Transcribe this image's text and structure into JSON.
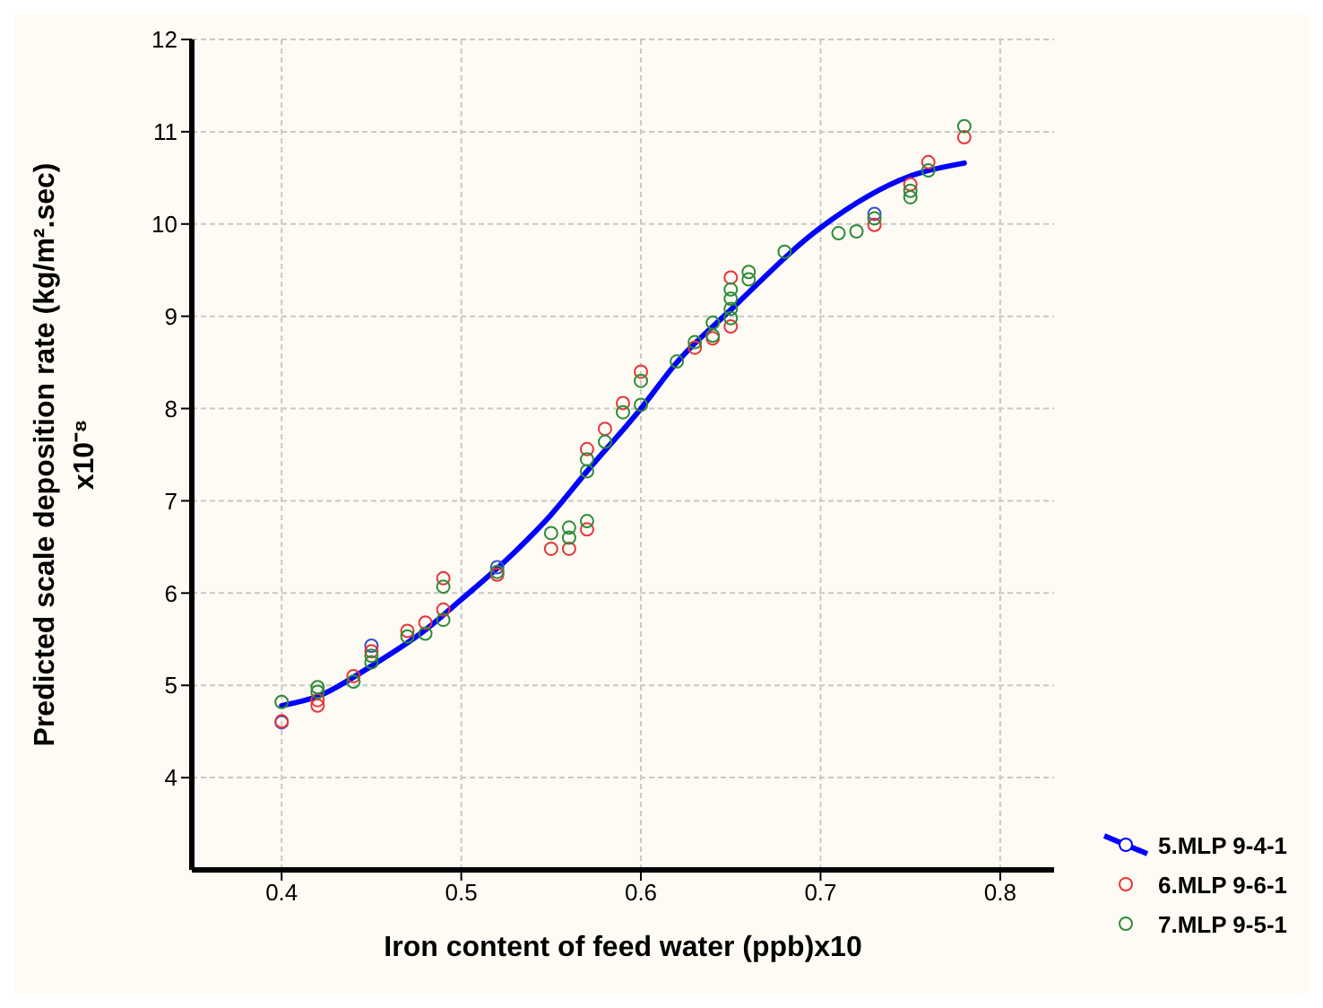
{
  "chart_data": {
    "type": "scatter",
    "xlabel": "Iron content of feed water (ppb)x10",
    "ylabel": "Predicted scale deposition rate (kg/m².sec)\nx10⁻⁸",
    "xlim": [
      0.35,
      0.83
    ],
    "xticks": [
      0.4,
      0.5,
      0.6,
      0.7,
      0.8
    ],
    "ylim": [
      3,
      12
    ],
    "yticks": [
      4,
      5,
      6,
      7,
      8,
      9,
      10,
      11,
      12
    ],
    "grid": true,
    "legend": "bottom right",
    "marker": "circle",
    "series": [
      {
        "name": "5.MLP 9-4-1",
        "type": "line",
        "marker": "none",
        "color": "#0000ff",
        "x": [
          0.4,
          0.42,
          0.45,
          0.48,
          0.5,
          0.53,
          0.55,
          0.57,
          0.6,
          0.62,
          0.65,
          0.7,
          0.75,
          0.78
        ],
        "values": [
          4.78,
          4.88,
          5.21,
          5.6,
          5.93,
          6.45,
          6.85,
          7.32,
          8.0,
          8.5,
          9.07,
          9.96,
          10.52,
          10.66
        ]
      },
      {
        "color": "#3a4fd0",
        "x": [
          0.4,
          0.45,
          0.52,
          0.71,
          0.73
        ],
        "values": [
          4.6,
          5.43,
          6.28,
          null,
          10.11
        ]
      },
      {
        "name": "6.MLP 9-6-1",
        "color": "#e8353a",
        "x": [
          0.4,
          0.42,
          0.42,
          0.44,
          0.45,
          0.47,
          0.48,
          0.49,
          0.49,
          0.52,
          0.55,
          0.56,
          0.57,
          0.57,
          0.58,
          0.59,
          0.6,
          0.63,
          0.64,
          0.65,
          0.65,
          0.73,
          0.75,
          0.76,
          0.78
        ],
        "values": [
          4.61,
          4.84,
          4.78,
          5.1,
          5.37,
          5.59,
          5.68,
          6.16,
          5.82,
          6.2,
          6.48,
          6.48,
          6.69,
          7.56,
          7.78,
          8.06,
          8.4,
          8.66,
          8.76,
          9.42,
          8.89,
          9.99,
          10.43,
          10.67,
          10.94
        ]
      },
      {
        "name": "7.MLP 9-5-1",
        "color": "#2e8b3a",
        "x": [
          0.4,
          0.42,
          0.42,
          0.44,
          0.45,
          0.45,
          0.47,
          0.48,
          0.49,
          0.49,
          0.52,
          0.55,
          0.56,
          0.56,
          0.57,
          0.57,
          0.57,
          0.58,
          0.59,
          0.6,
          0.6,
          0.62,
          0.63,
          0.64,
          0.64,
          0.65,
          0.65,
          0.65,
          0.65,
          0.66,
          0.66,
          0.68,
          0.71,
          0.72,
          0.73,
          0.75,
          0.75,
          0.76,
          0.78
        ],
        "values": [
          4.82,
          4.98,
          4.93,
          5.04,
          5.32,
          5.25,
          5.53,
          5.56,
          6.07,
          5.71,
          6.23,
          6.65,
          6.71,
          6.6,
          6.78,
          7.45,
          7.32,
          7.64,
          7.96,
          8.3,
          8.04,
          8.51,
          8.72,
          8.93,
          8.79,
          9.29,
          9.19,
          9.08,
          8.98,
          9.48,
          9.4,
          9.7,
          9.9,
          9.92,
          10.06,
          10.36,
          10.29,
          10.58,
          11.06
        ]
      }
    ]
  }
}
